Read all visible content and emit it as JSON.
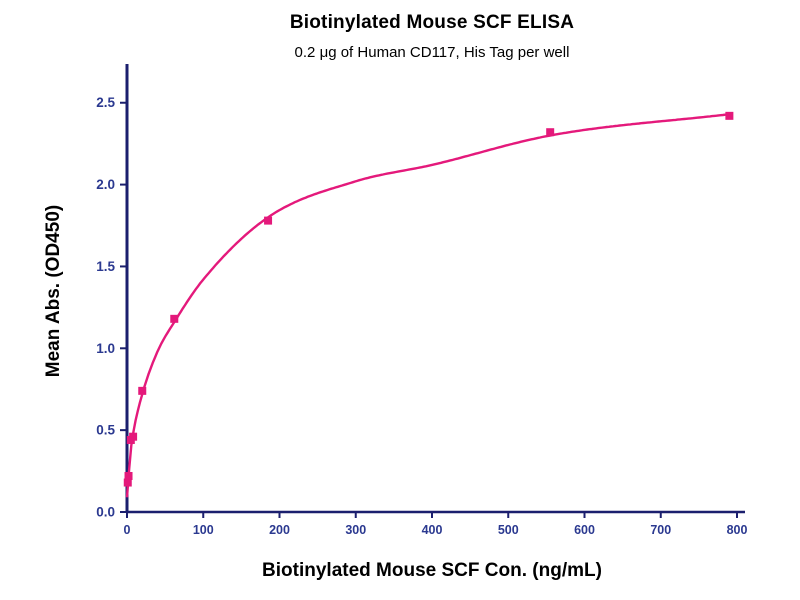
{
  "chart_data": {
    "type": "scatter",
    "title": "Biotinylated Mouse SCF ELISA",
    "subtitle": "0.2 μg of Human CD117, His Tag per well",
    "xlabel": "Biotinylated Mouse SCF Con. (ng/mL)",
    "ylabel": "Mean Abs. (OD450)",
    "xlim": [
      0,
      800
    ],
    "ylim": [
      0,
      2.7
    ],
    "x_ticks": [
      0,
      100,
      200,
      300,
      400,
      500,
      600,
      700,
      800
    ],
    "x_tick_labels": [
      "0",
      "100",
      "200",
      "300",
      "400",
      "500",
      "600",
      "700",
      "800"
    ],
    "y_ticks": [
      0.0,
      0.5,
      1.0,
      1.5,
      2.0,
      2.5
    ],
    "y_tick_labels": [
      "0.0",
      "0.5",
      "1.0",
      "1.5",
      "2.0",
      "2.5"
    ],
    "grid": false,
    "legend_position": "none",
    "series": [
      {
        "name": "Biotinylated Mouse SCF",
        "marker": "square",
        "color": "#e4197b",
        "points": [
          [
            1,
            0.18
          ],
          [
            2,
            0.22
          ],
          [
            5,
            0.44
          ],
          [
            8,
            0.46
          ],
          [
            20,
            0.74
          ],
          [
            62,
            1.18
          ],
          [
            185,
            1.78
          ],
          [
            555,
            2.32
          ],
          [
            790,
            2.42
          ]
        ]
      }
    ],
    "fit_curve": {
      "color": "#e4197b",
      "points": [
        [
          0,
          0.09
        ],
        [
          1,
          0.17
        ],
        [
          2,
          0.22
        ],
        [
          5,
          0.38
        ],
        [
          8,
          0.48
        ],
        [
          20,
          0.72
        ],
        [
          40,
          0.98
        ],
        [
          62,
          1.16
        ],
        [
          100,
          1.42
        ],
        [
          185,
          1.8
        ],
        [
          300,
          2.02
        ],
        [
          400,
          2.12
        ],
        [
          555,
          2.3
        ],
        [
          790,
          2.43
        ]
      ]
    },
    "colors": {
      "axis": "#1b1f6e",
      "tick_label": "#2b3990",
      "marker": "#e4197b",
      "curve": "#e4197b"
    }
  }
}
